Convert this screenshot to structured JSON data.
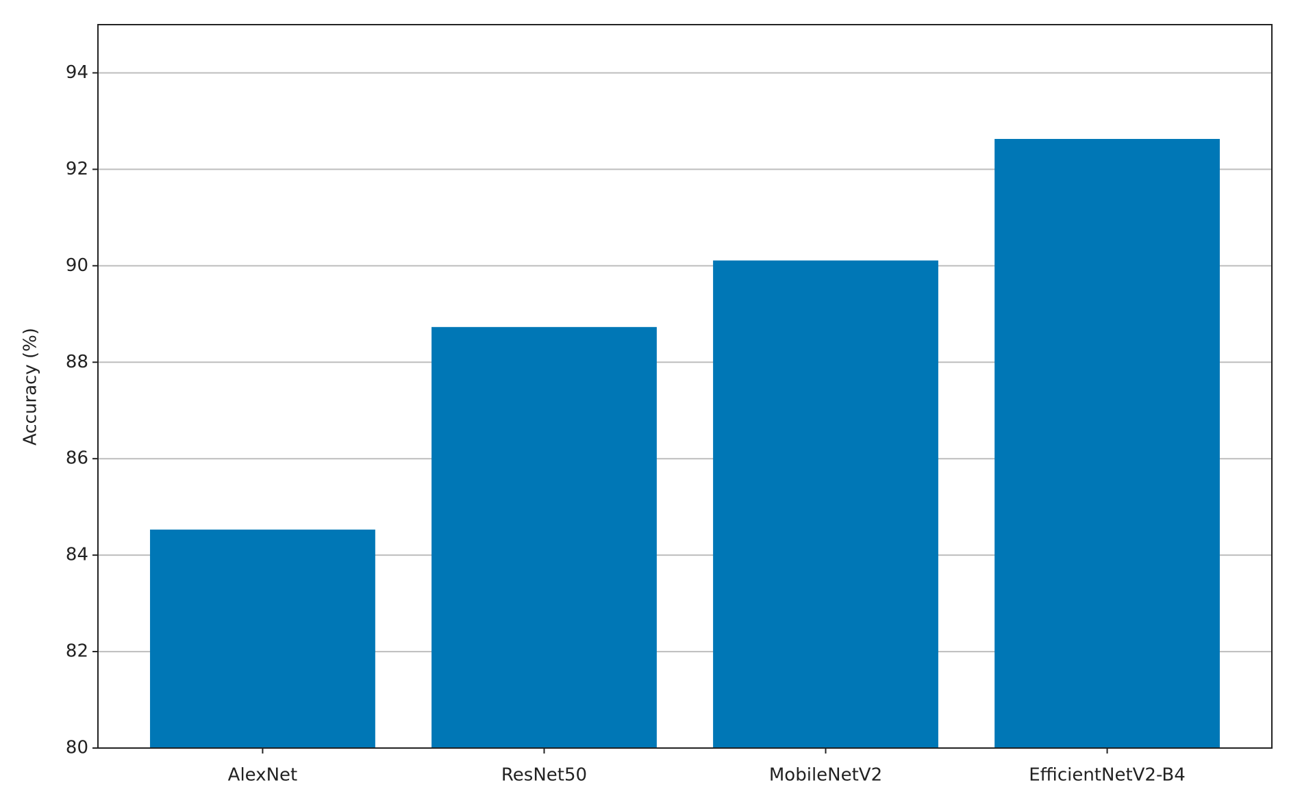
{
  "chart_data": {
    "type": "bar",
    "y_label": "Accuracy (%)",
    "categories": [
      "AlexNet",
      "ResNet50",
      "MobileNetV2",
      "EfficientNetV2-B4"
    ],
    "values": [
      84.53,
      88.73,
      90.11,
      92.63
    ],
    "color": "#0077b6",
    "ylim": [
      80,
      95
    ],
    "yticks": [
      80,
      82,
      84,
      86,
      88,
      90,
      92,
      94
    ],
    "grid": true
  }
}
